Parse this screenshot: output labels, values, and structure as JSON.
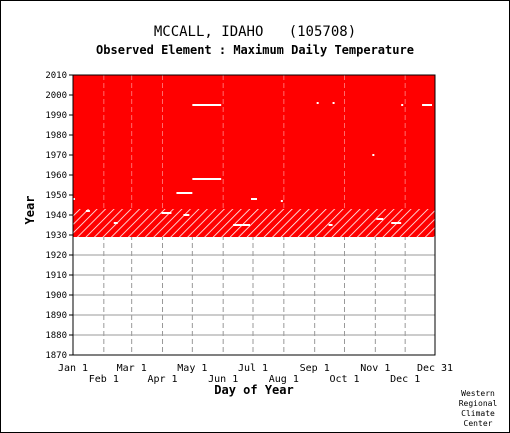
{
  "chart_data": {
    "type": "heatmap",
    "title": "MCCALL, IDAHO   (105708)",
    "subtitle": "Observed Element : Maximum Daily Temperature",
    "xlabel": "Day of Year",
    "ylabel": "Year",
    "ylim": [
      1870,
      2010
    ],
    "xlim": [
      1,
      365
    ],
    "y_ticks": [
      1870,
      1880,
      1890,
      1900,
      1910,
      1920,
      1930,
      1940,
      1950,
      1960,
      1970,
      1980,
      1990,
      2000,
      2010
    ],
    "x_ticks_upper": [
      {
        "label": "Jan 1",
        "day": 1
      },
      {
        "label": "Mar 1",
        "day": 60
      },
      {
        "label": "May 1",
        "day": 121
      },
      {
        "label": "Jul 1",
        "day": 182
      },
      {
        "label": "Sep 1",
        "day": 244
      },
      {
        "label": "Nov 1",
        "day": 305
      },
      {
        "label": "Dec 31",
        "day": 365
      }
    ],
    "x_ticks_lower": [
      {
        "label": "Feb 1",
        "day": 32
      },
      {
        "label": "Apr 1",
        "day": 91
      },
      {
        "label": "Jun 1",
        "day": 152
      },
      {
        "label": "Aug 1",
        "day": 213
      },
      {
        "label": "Oct 1",
        "day": 274
      },
      {
        "label": "Dec 1",
        "day": 335
      }
    ],
    "observed_years": [
      1929,
      2010
    ],
    "partial_years": [
      1929,
      1943
    ],
    "grid": true,
    "colors": {
      "observed": "#ff0000",
      "missing": "#ffffff",
      "grid": "#999999",
      "frame": "#000000"
    },
    "missing_spans": [
      {
        "year": 1995,
        "start": 121,
        "end": 150
      },
      {
        "year": 1996,
        "start": 246,
        "end": 247
      },
      {
        "year": 1996,
        "start": 262,
        "end": 263
      },
      {
        "year": 1995,
        "start": 331,
        "end": 333
      },
      {
        "year": 1995,
        "start": 352,
        "end": 362
      },
      {
        "year": 1970,
        "start": 302,
        "end": 303
      },
      {
        "year": 1958,
        "start": 121,
        "end": 150
      },
      {
        "year": 1951,
        "start": 105,
        "end": 121
      },
      {
        "year": 1948,
        "start": 180,
        "end": 186
      },
      {
        "year": 1947,
        "start": 210,
        "end": 211
      },
      {
        "year": 1948,
        "start": 1,
        "end": 3
      },
      {
        "year": 1942,
        "start": 14,
        "end": 18
      },
      {
        "year": 1941,
        "start": 90,
        "end": 100
      },
      {
        "year": 1940,
        "start": 112,
        "end": 118
      },
      {
        "year": 1935,
        "start": 162,
        "end": 179
      },
      {
        "year": 1936,
        "start": 42,
        "end": 46
      },
      {
        "year": 1938,
        "start": 306,
        "end": 313
      },
      {
        "year": 1936,
        "start": 321,
        "end": 331
      },
      {
        "year": 1935,
        "start": 258,
        "end": 262
      }
    ]
  },
  "credit": [
    "Western",
    "Regional",
    "Climate",
    "Center"
  ]
}
